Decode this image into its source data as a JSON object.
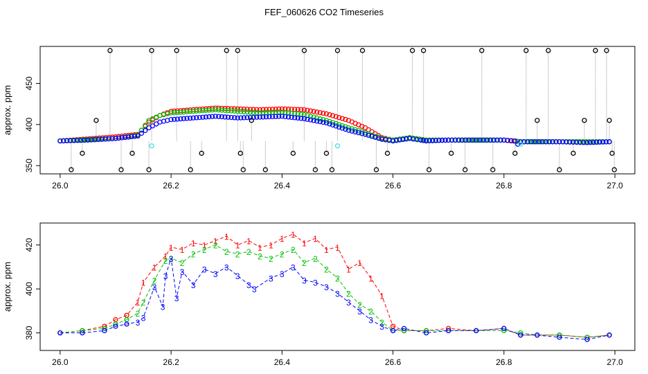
{
  "figure": {
    "title": "FEF_060626  CO2 Timeseries"
  },
  "colors": {
    "red": "#ff0000",
    "green": "#00c000",
    "blue": "#0000ff",
    "black": "#000000",
    "cyan": "#40e0e0",
    "gray": "#9a9a9a"
  },
  "chart_data": [
    {
      "type": "scatter",
      "ylabel": "approx. ppm",
      "xlabel": "",
      "xlim": [
        26.0,
        27.0
      ],
      "ylim": [
        340,
        495
      ],
      "xticks": [
        "26.0",
        "26.2",
        "26.4",
        "26.6",
        "26.8",
        "27.0"
      ],
      "yticks": [
        "350",
        "400",
        "450"
      ],
      "series": [
        {
          "color": "blue",
          "marker": "circle",
          "x": [
            26.0,
            26.05,
            26.1,
            26.14,
            26.16,
            26.18,
            26.2,
            26.24,
            26.28,
            26.32,
            26.36,
            26.4,
            26.44,
            26.48,
            26.52,
            26.55,
            26.58,
            26.6,
            26.63,
            26.65,
            26.66,
            26.7,
            26.75,
            26.8,
            26.82,
            26.825,
            26.83,
            26.85,
            26.9,
            26.95,
            26.99
          ],
          "y": [
            380,
            381,
            383,
            386,
            396,
            403,
            406,
            408,
            410,
            408,
            409,
            410,
            407,
            402,
            393,
            388,
            382,
            380,
            383,
            381,
            380,
            381,
            381,
            381,
            380,
            376,
            379,
            379,
            379,
            378,
            379
          ]
        },
        {
          "color": "green",
          "marker": "circle",
          "x": [
            26.0,
            26.1,
            26.14,
            26.16,
            26.18,
            26.2,
            26.24,
            26.28,
            26.32,
            26.36,
            26.4,
            26.44,
            26.48,
            26.52,
            26.55,
            26.58,
            26.6,
            26.63,
            26.66,
            26.7,
            26.8,
            26.82,
            26.83,
            26.9,
            26.99
          ],
          "y": [
            380,
            383,
            387,
            405,
            411,
            414,
            416,
            418,
            416,
            414,
            415,
            412,
            405,
            396,
            390,
            383,
            381,
            384,
            381,
            381,
            381,
            380,
            379,
            379,
            379
          ]
        },
        {
          "color": "red",
          "marker": "circle",
          "x": [
            26.0,
            26.1,
            26.14,
            26.16,
            26.18,
            26.2,
            26.24,
            26.28,
            26.32,
            26.36,
            26.4,
            26.44,
            26.48,
            26.52,
            26.55,
            26.58,
            26.6,
            26.63,
            26.66,
            26.7,
            26.8,
            26.83,
            26.9,
            26.99
          ],
          "y": [
            380,
            385,
            388,
            403,
            411,
            416,
            418,
            420,
            419,
            418,
            419,
            418,
            413,
            405,
            396,
            384,
            381,
            384,
            381,
            381,
            381,
            379,
            379,
            379
          ]
        },
        {
          "color": "black",
          "marker": "circle",
          "note": "outliers",
          "x": [
            26.02,
            26.04,
            26.065,
            26.09,
            26.11,
            26.13,
            26.16,
            26.165,
            26.21,
            26.235,
            26.255,
            26.3,
            26.32,
            26.325,
            26.33,
            26.345,
            26.37,
            26.42,
            26.44,
            26.46,
            26.48,
            26.49,
            26.5,
            26.545,
            26.57,
            26.59,
            26.635,
            26.655,
            26.665,
            26.705,
            26.73,
            26.76,
            26.78,
            26.82,
            26.84,
            26.86,
            26.88,
            26.9,
            26.925,
            26.945,
            26.965,
            26.985,
            26.99,
            26.995,
            26.999
          ],
          "y": [
            345,
            365,
            405,
            490,
            345,
            365,
            345,
            490,
            490,
            345,
            365,
            490,
            490,
            365,
            345,
            405,
            345,
            365,
            490,
            345,
            365,
            345,
            490,
            490,
            345,
            365,
            490,
            490,
            345,
            365,
            345,
            490,
            345,
            365,
            490,
            405,
            490,
            345,
            365,
            405,
            490,
            490,
            405,
            365,
            345
          ]
        },
        {
          "color": "cyan",
          "marker": "circle",
          "x": [
            26.165,
            26.5,
            26.83
          ],
          "y": [
            374,
            374,
            376
          ]
        }
      ]
    },
    {
      "type": "line",
      "ylabel": "approx. ppm",
      "xlabel": "",
      "xlim": [
        26.0,
        27.0
      ],
      "ylim": [
        372,
        430
      ],
      "xticks": [
        "26.0",
        "26.2",
        "26.4",
        "26.6",
        "26.8",
        "27.0"
      ],
      "yticks": [
        "380",
        "400",
        "420"
      ],
      "series": [
        {
          "color": "red",
          "marker_label": "1",
          "x": [
            26.0,
            26.04,
            26.08,
            26.1,
            26.12,
            26.14,
            26.15,
            26.17,
            26.19,
            26.2,
            26.22,
            26.24,
            26.26,
            26.28,
            26.3,
            26.32,
            26.34,
            26.36,
            26.38,
            26.4,
            26.42,
            26.44,
            26.46,
            26.48,
            26.5,
            26.52,
            26.54,
            26.56,
            26.58,
            26.6,
            26.62,
            26.66,
            26.7,
            26.75,
            26.8,
            26.83,
            26.86,
            26.9,
            26.95,
            26.99
          ],
          "y": [
            380,
            381,
            383,
            386,
            388,
            394,
            403,
            410,
            415,
            419,
            418,
            421,
            420,
            422,
            424,
            420,
            422,
            419,
            420,
            423,
            425,
            421,
            423,
            418,
            419,
            409,
            412,
            405,
            397,
            383,
            381,
            381,
            382,
            381,
            382,
            379,
            379,
            379,
            378,
            379
          ]
        },
        {
          "color": "green",
          "marker_label": "2",
          "x": [
            26.0,
            26.04,
            26.08,
            26.1,
            26.12,
            26.14,
            26.15,
            26.17,
            26.19,
            26.2,
            26.22,
            26.24,
            26.26,
            26.28,
            26.3,
            26.32,
            26.34,
            26.36,
            26.38,
            26.4,
            26.42,
            26.44,
            26.46,
            26.48,
            26.5,
            26.52,
            26.54,
            26.56,
            26.58,
            26.6,
            26.62,
            26.66,
            26.7,
            26.75,
            26.8,
            26.83,
            26.86,
            26.9,
            26.95,
            26.99
          ],
          "y": [
            380,
            381,
            382,
            384,
            386,
            389,
            394,
            404,
            413,
            414,
            412,
            416,
            418,
            420,
            417,
            416,
            417,
            415,
            414,
            416,
            418,
            412,
            414,
            409,
            405,
            398,
            393,
            390,
            385,
            381,
            381,
            381,
            381,
            381,
            381,
            380,
            379,
            379,
            378,
            379
          ]
        },
        {
          "color": "blue",
          "marker_label": "3",
          "x": [
            26.0,
            26.04,
            26.08,
            26.1,
            26.12,
            26.14,
            26.15,
            26.17,
            26.185,
            26.19,
            26.2,
            26.21,
            26.22,
            26.24,
            26.26,
            26.28,
            26.3,
            26.32,
            26.34,
            26.35,
            26.38,
            26.4,
            26.42,
            26.44,
            26.46,
            26.48,
            26.5,
            26.52,
            26.54,
            26.56,
            26.58,
            26.6,
            26.62,
            26.66,
            26.7,
            26.75,
            26.8,
            26.83,
            26.86,
            26.9,
            26.95,
            26.99
          ],
          "y": [
            380,
            380,
            381,
            383,
            384,
            385,
            387,
            401,
            392,
            406,
            414,
            396,
            408,
            402,
            409,
            407,
            410,
            406,
            402,
            400,
            405,
            407,
            410,
            404,
            403,
            401,
            398,
            394,
            390,
            386,
            383,
            381,
            382,
            380,
            381,
            381,
            382,
            379,
            379,
            378,
            377,
            379
          ]
        }
      ]
    }
  ]
}
